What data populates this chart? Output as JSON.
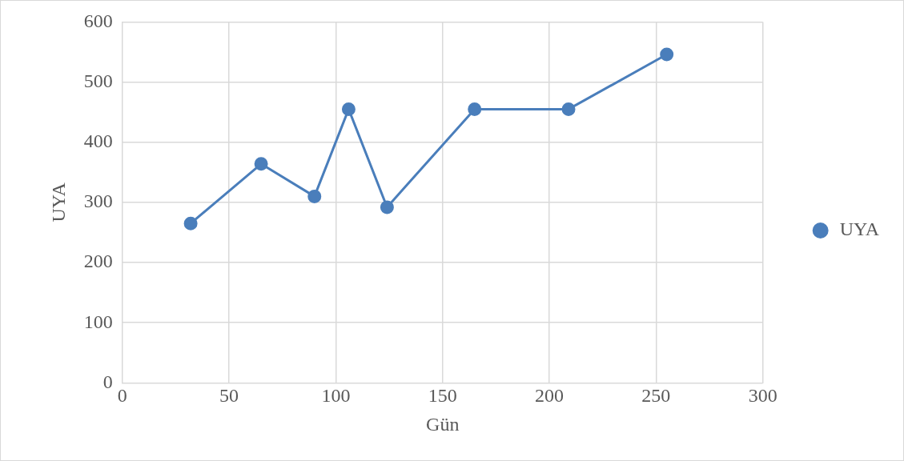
{
  "chart_data": {
    "type": "line",
    "xlabel": "Gün",
    "ylabel": "UYA",
    "x": [
      32,
      65,
      90,
      106,
      124,
      165,
      209,
      255
    ],
    "series": [
      {
        "name": "UYA",
        "color": "#4a7ebb",
        "values": [
          265,
          364,
          310,
          455,
          292,
          455,
          455,
          546
        ]
      }
    ],
    "xlim": [
      0,
      300
    ],
    "xticks": [
      0,
      50,
      100,
      150,
      200,
      250,
      300
    ],
    "ylim": [
      0,
      600
    ],
    "yticks": [
      0,
      100,
      200,
      300,
      400,
      500,
      600
    ],
    "grid": true,
    "legend": "right",
    "marker": "circle",
    "line_style": "solid"
  }
}
